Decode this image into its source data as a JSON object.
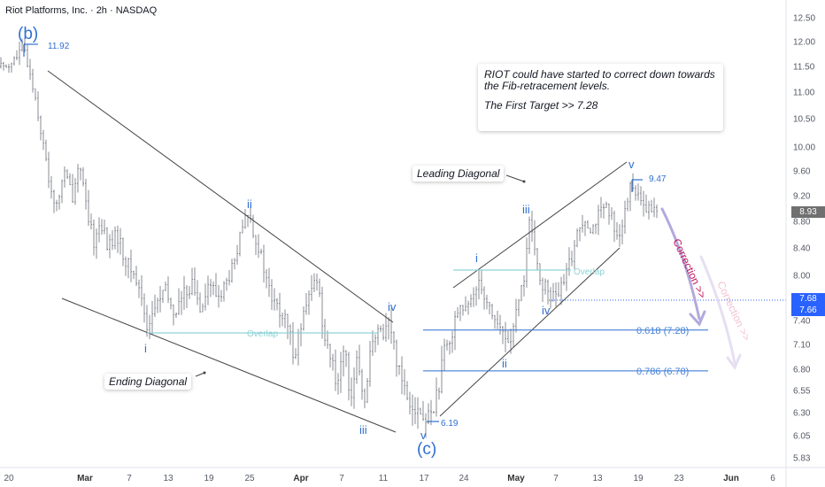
{
  "chart_data": {
    "type": "candlestick",
    "title": "Riot Platforms, Inc. · 2h · NASDAQ",
    "ylim": [
      5.7,
      12.65
    ],
    "y_ticks": [
      "12.50",
      "12.00",
      "11.50",
      "11.00",
      "10.50",
      "10.00",
      "9.60",
      "9.20",
      "8.80",
      "8.40",
      "8.00",
      "7.40",
      "7.10",
      "6.80",
      "6.55",
      "6.30",
      "6.05",
      "5.83"
    ],
    "x_ticks": [
      {
        "label": "20",
        "bold": false
      },
      {
        "label": "Mar",
        "bold": true
      },
      {
        "label": "7",
        "bold": false
      },
      {
        "label": "13",
        "bold": false
      },
      {
        "label": "19",
        "bold": false
      },
      {
        "label": "25",
        "bold": false
      },
      {
        "label": "Apr",
        "bold": true
      },
      {
        "label": "7",
        "bold": false
      },
      {
        "label": "11",
        "bold": false
      },
      {
        "label": "17",
        "bold": false
      },
      {
        "label": "24",
        "bold": false
      },
      {
        "label": "May",
        "bold": true
      },
      {
        "label": "7",
        "bold": false
      },
      {
        "label": "13",
        "bold": false
      },
      {
        "label": "19",
        "bold": false
      },
      {
        "label": "23",
        "bold": false
      },
      {
        "label": "Jun",
        "bold": true
      },
      {
        "label": "6",
        "bold": false
      }
    ],
    "price_labels": [
      {
        "value": "8.93",
        "color": "#707070",
        "y": 8.93
      },
      {
        "value": "7.68",
        "color": "#2962ff",
        "y": 7.68
      },
      {
        "value": "7.66",
        "color": "#2962ff",
        "y": 7.66
      }
    ],
    "swing_labels": {
      "high": "11.92",
      "low": "6.19",
      "peak": "9.47"
    },
    "fib_levels": [
      {
        "label": "0.618 (7.28)",
        "value": 7.28
      },
      {
        "label": "0.786 (6.78)",
        "value": 6.78
      }
    ],
    "overlap_label": "Overlap",
    "wave_labels": {
      "b": "(b)",
      "c": "(c)",
      "i": "i",
      "ii": "ii",
      "iii": "iii",
      "iv": "iv",
      "v": "v"
    },
    "annotations": {
      "ending_diagonal": "Ending Diagonal",
      "leading_diagonal": "Leading Diagonal",
      "callout_line1": "RIOT could have started to correct down towards the Fib-retracement levels.",
      "callout_line2": "The First Target >> 7.28",
      "correction": "Correction >>"
    },
    "colors": {
      "wave": "#2e6fd1",
      "fib": "#2e6fd1",
      "overlap": "#8fd3d6",
      "correction": "#c2185b",
      "arrow": "#b3a9dd"
    }
  }
}
